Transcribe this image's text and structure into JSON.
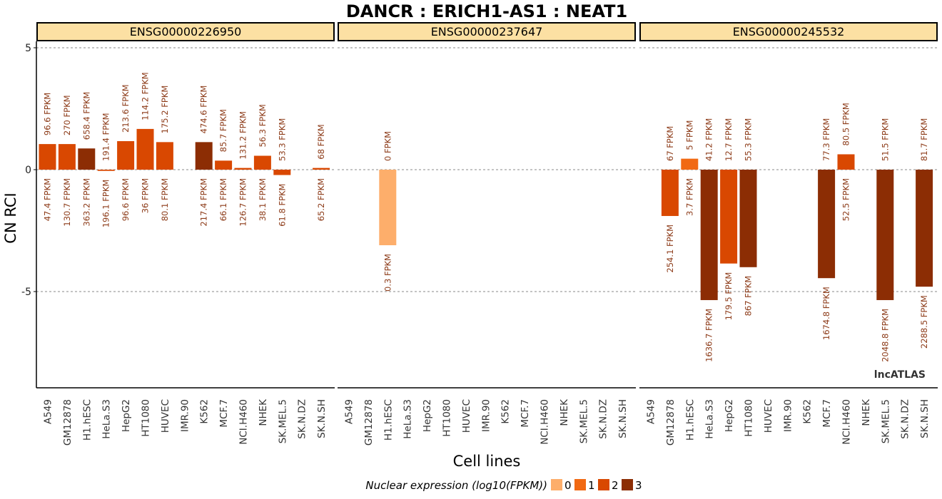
{
  "chart_data": {
    "type": "bar",
    "title": "DANCR : ERICH1-AS1 : NEAT1",
    "xlabel": "Cell lines",
    "ylabel": "CN RCI",
    "ylim": [
      -9,
      6
    ],
    "yticks": [
      -5,
      0,
      5
    ],
    "grid": "horizontal dashed at y-ticks",
    "categories": [
      "A549",
      "GM12878",
      "H1.hESC",
      "HeLa.S3",
      "HepG2",
      "HT1080",
      "HUVEC",
      "IMR.90",
      "K562",
      "MCF.7",
      "NCI.H460",
      "NHEK",
      "SK.MEL.5",
      "SK.N.DZ",
      "SK.N.SH"
    ],
    "color_scale": {
      "0": "#fdae6b",
      "1": "#f16913",
      "2": "#d94801",
      "3": "#8c2d04"
    },
    "legend": {
      "title": "Nuclear expression (log10(FPKM))",
      "position": "bottom",
      "levels": [
        "0",
        "1",
        "2",
        "3"
      ]
    },
    "watermark": "lncATLAS",
    "panels": [
      {
        "name": "ENSG00000226950",
        "values": [
          1.05,
          1.05,
          0.87,
          -0.05,
          1.17,
          1.67,
          1.13,
          null,
          1.13,
          0.37,
          0.07,
          0.57,
          -0.22,
          null,
          0.07
        ],
        "levels": [
          2,
          2,
          3,
          2,
          2,
          2,
          2,
          null,
          3,
          2,
          2,
          2,
          2,
          null,
          2
        ],
        "nuclear_labels": [
          "96.6 FPKM",
          "270 FPKM",
          "658.4 FPKM",
          "191.4 FPKM",
          "213.6 FPKM",
          "114.2 FPKM",
          "175.2 FPKM",
          "",
          "474.6 FPKM",
          "85.7 FPKM",
          "131.2 FPKM",
          "56.3 FPKM",
          "53.3 FPKM",
          "",
          "68 FPKM"
        ],
        "cytoplasmic_labels": [
          "47.4 FPKM",
          "130.7 FPKM",
          "363.2 FPKM",
          "196.1 FPKM",
          "96.6 FPKM",
          "36 FPKM",
          "80.1 FPKM",
          "",
          "217.4 FPKM",
          "66.1 FPKM",
          "126.7 FPKM",
          "38.1 FPKM",
          "61.8 FPKM",
          "",
          "65.2 FPKM"
        ]
      },
      {
        "name": "ENSG00000237647",
        "values": [
          null,
          null,
          -3.1,
          null,
          null,
          null,
          null,
          null,
          null,
          null,
          null,
          null,
          null,
          null,
          null
        ],
        "levels": [
          null,
          null,
          0,
          null,
          null,
          null,
          null,
          null,
          null,
          null,
          null,
          null,
          null,
          null,
          null
        ],
        "nuclear_labels": [
          "",
          "",
          "0 FPKM",
          "",
          "",
          "",
          "",
          "",
          "",
          "",
          "",
          "",
          "",
          "",
          ""
        ],
        "cytoplasmic_labels": [
          "",
          "",
          "0.3 FPKM",
          "",
          "",
          "",
          "",
          "",
          "",
          "",
          "",
          "",
          "",
          "",
          ""
        ]
      },
      {
        "name": "ENSG00000245532",
        "values": [
          null,
          -1.9,
          0.45,
          -5.35,
          -3.85,
          -4.0,
          null,
          null,
          null,
          -4.45,
          0.63,
          null,
          -5.35,
          null,
          -4.8
        ],
        "levels": [
          null,
          2,
          1,
          3,
          2,
          3,
          null,
          null,
          null,
          3,
          2,
          null,
          3,
          null,
          3
        ],
        "nuclear_labels": [
          "",
          "67 FPKM",
          "5 FPKM",
          "41.2 FPKM",
          "12.7 FPKM",
          "55.3 FPKM",
          "",
          "",
          "",
          "77.3 FPKM",
          "80.5 FPKM",
          "",
          "51.5 FPKM",
          "",
          "81.7 FPKM"
        ],
        "cytoplasmic_labels": [
          "",
          "254.1 FPKM",
          "3.7 FPKM",
          "1636.7 FPKM",
          "179.5 FPKM",
          "867 FPKM",
          "",
          "",
          "",
          "1674.8 FPKM",
          "52.5 FPKM",
          "",
          "2048.8 FPKM",
          "",
          "2288.5 FPKM"
        ]
      }
    ]
  }
}
